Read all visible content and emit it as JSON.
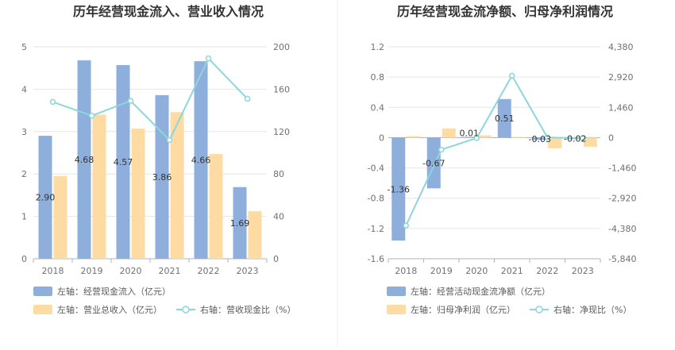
{
  "colors": {
    "bar1": "#8eaedb",
    "bar2": "#fddba3",
    "line": "#8dd6dd",
    "grid": "#e6e6e6",
    "axis": "#6e7079",
    "divider": "#eeeeee"
  },
  "chart_data": [
    {
      "type": "bar",
      "title": "历年经营现金流入、营业收入情况",
      "categories": [
        "2018",
        "2019",
        "2020",
        "2021",
        "2022",
        "2023"
      ],
      "left_axis": {
        "min": 0,
        "max": 5,
        "ticks": [
          "0",
          "1",
          "2",
          "3",
          "4",
          "5"
        ]
      },
      "right_axis": {
        "min": 0,
        "max": 200,
        "ticks": [
          "0",
          "40",
          "80",
          "120",
          "160",
          "200"
        ]
      },
      "series": [
        {
          "name": "左轴：经营现金流入（亿元）",
          "type": "bar",
          "axis": "left",
          "values": [
            2.9,
            4.68,
            4.57,
            3.86,
            4.66,
            1.69
          ],
          "labels": [
            "2.90",
            "4.68",
            "4.57",
            "3.86",
            "4.66",
            "1.69"
          ]
        },
        {
          "name": "左轴：营业总收入（亿元）",
          "type": "bar",
          "axis": "left",
          "values": [
            1.95,
            3.4,
            3.07,
            3.46,
            2.47,
            1.12
          ]
        },
        {
          "name": "右轴：营收现金比（%）",
          "type": "line",
          "axis": "right",
          "values": [
            148,
            135,
            149,
            112,
            189,
            151
          ]
        }
      ]
    },
    {
      "type": "bar",
      "title": "历年经营现金流净额、归母净利润情况",
      "categories": [
        "2018",
        "2019",
        "2020",
        "2021",
        "2022",
        "2023"
      ],
      "left_axis": {
        "min": -1.6,
        "max": 1.2,
        "ticks": [
          "-1.6",
          "-1.2",
          "-0.8",
          "-0.4",
          "0",
          "0.4",
          "0.8",
          "1.2"
        ]
      },
      "right_axis": {
        "min": -5840,
        "max": 4380,
        "ticks": [
          "-5,840",
          "-4,380",
          "-2,920",
          "-1,460",
          "0",
          "1,460",
          "2,920",
          "4,380"
        ]
      },
      "series": [
        {
          "name": "左轴：经营活动现金流净额（亿元）",
          "type": "bar",
          "axis": "left",
          "values": [
            -1.36,
            -0.67,
            0.01,
            0.51,
            -0.03,
            -0.02
          ],
          "labels": [
            "-1.36",
            "-0.67",
            "0.01",
            "0.51",
            "-0.03",
            "-0.02"
          ]
        },
        {
          "name": "左轴：归母净利润（亿元）",
          "type": "bar",
          "axis": "left",
          "values": [
            0.02,
            0.12,
            0.03,
            0.01,
            -0.14,
            -0.12
          ]
        },
        {
          "name": "右轴：净现比（%）",
          "type": "line",
          "axis": "right",
          "values": [
            -4240,
            -580,
            -20,
            2990,
            10,
            -30
          ]
        }
      ]
    }
  ]
}
